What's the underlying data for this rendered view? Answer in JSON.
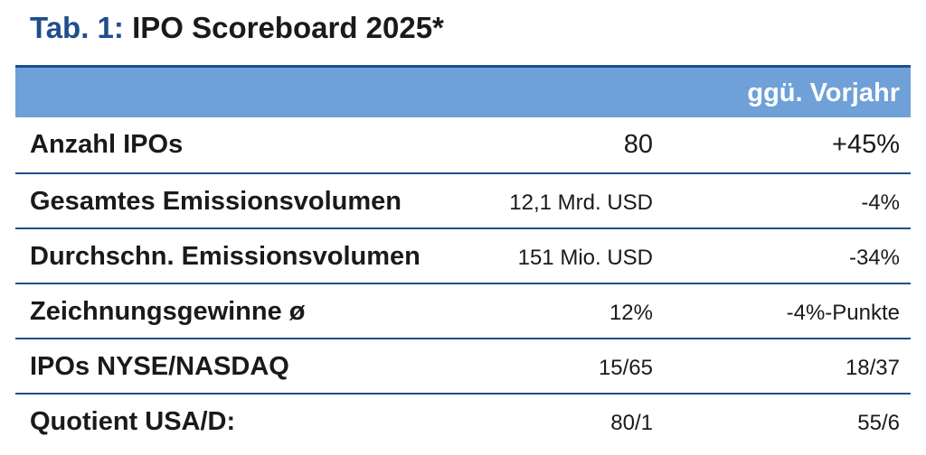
{
  "header": {
    "label": "Tab. 1:",
    "title": "IPO Scoreboard 2025*"
  },
  "table": {
    "columns": [
      "ggü. Vorjahr"
    ],
    "rows": [
      [
        "Anzahl IPOs",
        "80",
        "+45%"
      ],
      [
        "Gesamtes Emissionsvolumen",
        "12,1 Mrd. USD",
        "-4%"
      ],
      [
        "Durchschn. Emissionsvolumen",
        "151 Mio. USD",
        "-34%"
      ],
      [
        "Zeichnungsgewinne ø",
        "12%",
        "-4%-Punkte"
      ],
      [
        "IPOs NYSE/NASDAQ",
        "15/65",
        "18/37"
      ],
      [
        "Quotient USA/D:",
        "80/1",
        "55/6"
      ]
    ]
  }
}
